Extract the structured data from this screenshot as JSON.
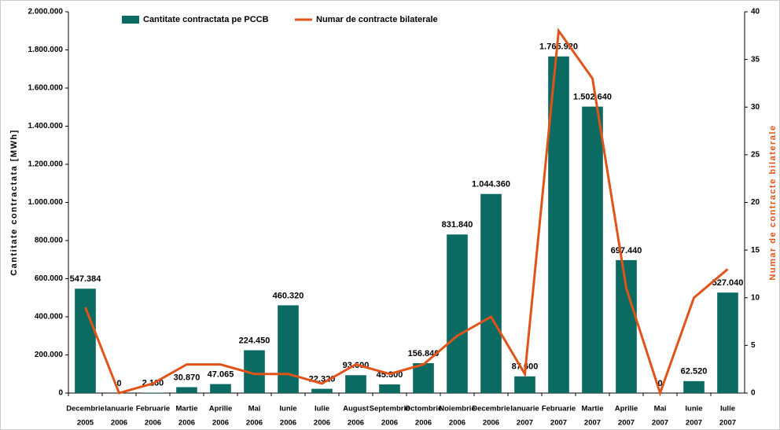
{
  "chart_data": {
    "type": "bar_line",
    "categories": [
      [
        "Decembrie",
        "2005"
      ],
      [
        "Ianuarie",
        "2006"
      ],
      [
        "Februarie",
        "2006"
      ],
      [
        "Martie",
        "2006"
      ],
      [
        "Aprilie",
        "2006"
      ],
      [
        "Mai",
        "2006"
      ],
      [
        "Iunie",
        "2006"
      ],
      [
        "Iulie",
        "2006"
      ],
      [
        "August",
        "2006"
      ],
      [
        "Septembrie",
        "2006"
      ],
      [
        "Octombrie",
        "2006"
      ],
      [
        "Noiembrie",
        "2006"
      ],
      [
        "Decembrie",
        "2006"
      ],
      [
        "Ianuarie",
        "2007"
      ],
      [
        "Februarie",
        "2007"
      ],
      [
        "Martie",
        "2007"
      ],
      [
        "Aprilie",
        "2007"
      ],
      [
        "Mai",
        "2007"
      ],
      [
        "Iunie",
        "2007"
      ],
      [
        "Iulie",
        "2007"
      ]
    ],
    "series": [
      {
        "name": "Cantitate contractata pe PCCB",
        "type": "bar",
        "color": "#0b6a62",
        "values": [
          547384,
          0,
          2160,
          30870,
          47065,
          224450,
          460320,
          22320,
          93600,
          45300,
          156840,
          831840,
          1044360,
          87600,
          1765920,
          1502640,
          697440,
          0,
          62520,
          527040
        ],
        "value_labels": [
          "547.384",
          "0",
          "2.160",
          "30.870",
          "47.065",
          "224.450",
          "460.320",
          "22.320",
          "93.600",
          "45.300",
          "156.840",
          "831.840",
          "1.044.360",
          "87.600",
          "1.765.920",
          "1.502.640",
          "697.440",
          "0",
          "62.520",
          "527.040"
        ]
      },
      {
        "name": "Numar de contracte bilaterale",
        "type": "line",
        "axis": "y2",
        "color": "#e0541a",
        "values": [
          9,
          0,
          1,
          3,
          3,
          2,
          2,
          1,
          3,
          2,
          3,
          6,
          8,
          2,
          38,
          33,
          11,
          0,
          10,
          13
        ]
      }
    ],
    "ylabel": "Cantitate contractata [MWh]",
    "y2label": "Numar de contracte bilaterale",
    "ylim": [
      0,
      2000000
    ],
    "yticks": [
      0,
      {
        "value": 200000,
        "label": "200.000"
      },
      {
        "value": 400000,
        "label": "400.000"
      },
      {
        "value": 600000,
        "label": "600.000"
      },
      {
        "value": 800000,
        "label": "800.000"
      },
      {
        "value": 1000000,
        "label": "1.000.000"
      },
      {
        "value": 1200000,
        "label": "1.200.000"
      },
      {
        "value": 1400000,
        "label": "1.400.000"
      },
      {
        "value": 1600000,
        "label": "1.600.000"
      },
      {
        "value": 1800000,
        "label": "1.800.000"
      },
      {
        "value": 2000000,
        "label": "2.000.000"
      }
    ],
    "y2lim": [
      0,
      40
    ],
    "y2ticks": [
      0,
      5,
      10,
      15,
      20,
      25,
      30,
      35,
      40
    ],
    "legend": "top"
  }
}
